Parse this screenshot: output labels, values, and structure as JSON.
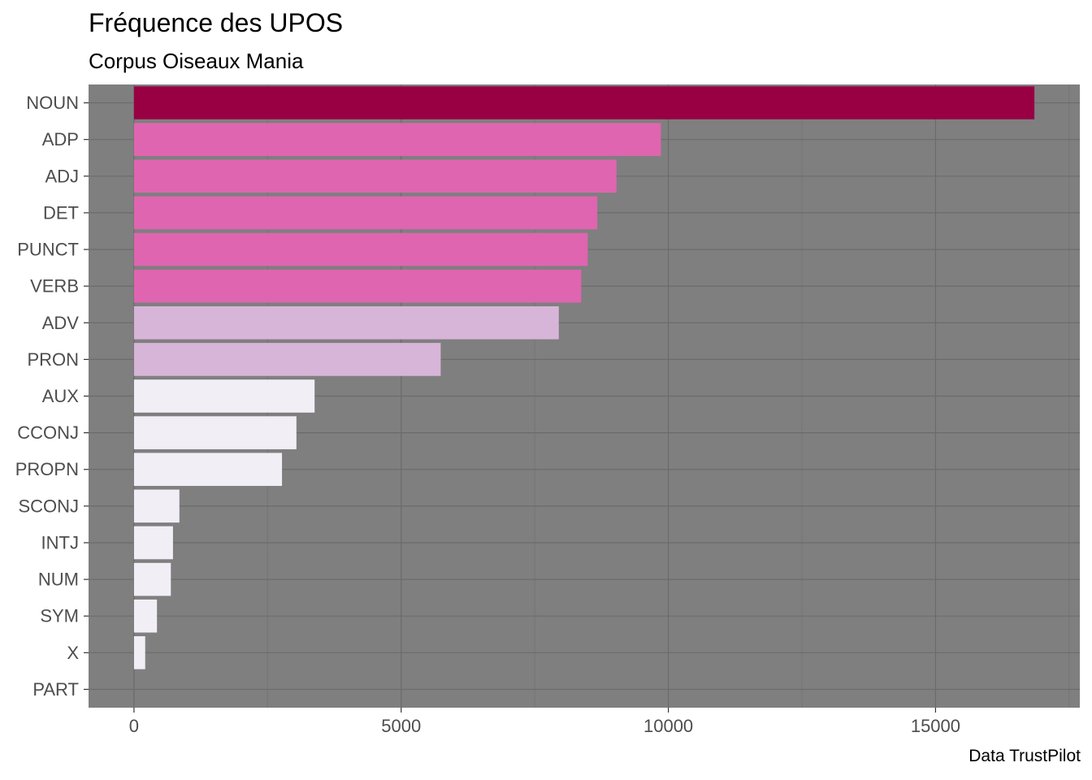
{
  "chart_data": {
    "type": "bar",
    "orientation": "horizontal",
    "title": "Fréquence des UPOS",
    "subtitle": "Corpus Oiseaux Mania",
    "caption": "Data TrustPilot",
    "xlabel": "",
    "ylabel": "",
    "categories": [
      "NOUN",
      "ADP",
      "ADJ",
      "DET",
      "PUNCT",
      "VERB",
      "ADV",
      "PRON",
      "AUX",
      "CCONJ",
      "PROPN",
      "SCONJ",
      "INTJ",
      "NUM",
      "SYM",
      "X",
      "PART"
    ],
    "values": [
      16850,
      9860,
      9030,
      8670,
      8490,
      8370,
      7950,
      5740,
      3380,
      3040,
      2770,
      850,
      730,
      690,
      430,
      210,
      0
    ],
    "x_ticks": [
      0,
      5000,
      10000,
      15000
    ],
    "x_tick_labels": [
      "0",
      "5000",
      "10000",
      "15000"
    ],
    "xlim": [
      -850,
      17700
    ],
    "grid": true,
    "legend": "none",
    "colors": {
      "panel_background": "#7f7f7f",
      "grid_major": "#6b6b6b",
      "grid_minor": "#747474",
      "tick_text": "#4d4d4d",
      "bar_fills": [
        "#980043",
        "#df65b0",
        "#df65b0",
        "#df65b0",
        "#df65b0",
        "#df65b0",
        "#d7b5d8",
        "#d7b5d8",
        "#f1eef6",
        "#f1eef6",
        "#f1eef6",
        "#f1eef6",
        "#f1eef6",
        "#f1eef6",
        "#f1eef6",
        "#f1eef6",
        "#f1eef6"
      ]
    }
  }
}
